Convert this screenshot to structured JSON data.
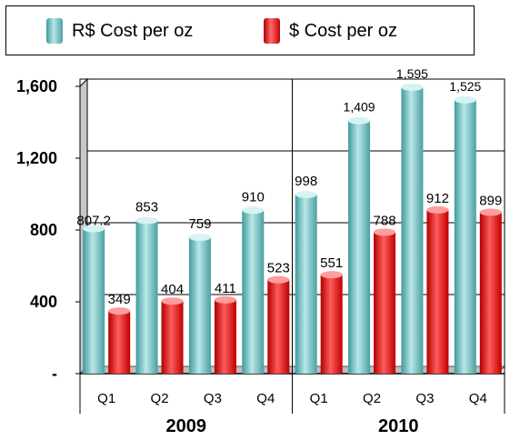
{
  "legend": {
    "items": [
      {
        "label": "R$ Cost per oz",
        "color": "#7cc7c9"
      },
      {
        "label": "$ Cost per oz",
        "color": "#ee1111"
      }
    ]
  },
  "chart_data": {
    "type": "bar",
    "title": "",
    "xlabel": "",
    "ylabel": "",
    "ylim": [
      0,
      1600
    ],
    "yticks": [
      0,
      400,
      800,
      1200,
      1600
    ],
    "ytick_labels": [
      "-",
      "400",
      "800",
      "1,200",
      "1,600"
    ],
    "grid": true,
    "legend_position": "top",
    "categories": [
      "Q1",
      "Q2",
      "Q3",
      "Q4",
      "Q1",
      "Q2",
      "Q3",
      "Q4"
    ],
    "groups": [
      {
        "label": "2009",
        "span": [
          0,
          3
        ]
      },
      {
        "label": "2010",
        "span": [
          4,
          7
        ]
      }
    ],
    "series": [
      {
        "name": "R$ Cost per oz",
        "color": "#7cc7c9",
        "values": [
          807.2,
          853,
          759,
          910,
          998,
          1409,
          1595,
          1525
        ],
        "labels": [
          "807.2",
          "853",
          "759",
          "910",
          "998",
          "1,409",
          "1,595",
          "1,525"
        ]
      },
      {
        "name": "$ Cost per oz",
        "color": "#ee1111",
        "values": [
          349,
          404,
          411,
          523,
          551,
          788,
          912,
          899
        ],
        "labels": [
          "349",
          "404",
          "411",
          "523",
          "551",
          "788",
          "912",
          "899"
        ]
      }
    ]
  }
}
